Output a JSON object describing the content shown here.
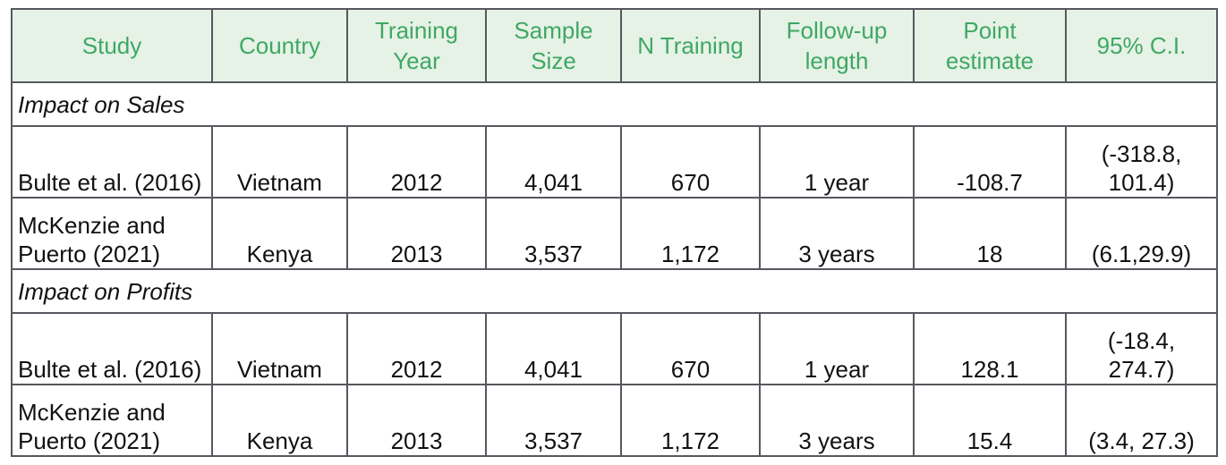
{
  "columns": [
    "Study",
    "Country",
    "Training Year",
    "Sample Size",
    "N Training",
    "Follow-up length",
    "Point estimate",
    "95% C.I."
  ],
  "sections": [
    {
      "title": "Impact on Sales",
      "rows": [
        [
          "Bulte et al. (2016)",
          "Vietnam",
          "2012",
          "4,041",
          "670",
          "1 year",
          "-108.7",
          "(-318.8, 101.4)"
        ],
        [
          "McKenzie and Puerto (2021)",
          "Kenya",
          "2013",
          "3,537",
          "1,172",
          "3 years",
          "18",
          "(6.1,29.9)"
        ]
      ]
    },
    {
      "title": "Impact on Profits",
      "rows": [
        [
          "Bulte et al. (2016)",
          "Vietnam",
          "2012",
          "4,041",
          "670",
          "1 year",
          "128.1",
          "(-18.4, 274.7)"
        ],
        [
          "McKenzie and Puerto (2021)",
          "Kenya",
          "2013",
          "3,537",
          "1,172",
          "3 years",
          "15.4",
          "(3.4, 27.3)"
        ]
      ]
    }
  ]
}
